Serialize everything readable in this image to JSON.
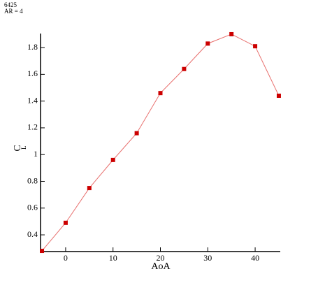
{
  "chart_data": {
    "type": "line",
    "title_lines": [
      "6425",
      "AR = 4"
    ],
    "x_label": "AoA",
    "y_label": "C",
    "y_label_subscript": "L",
    "x": [
      -5,
      0,
      5,
      10,
      15,
      20,
      25,
      30,
      35,
      40,
      45
    ],
    "series": [
      {
        "color": "#cc0000",
        "line_color": "#e8706e",
        "values": [
          0.28,
          0.49,
          0.75,
          0.96,
          1.16,
          1.46,
          1.64,
          1.83,
          1.9,
          1.81,
          1.44
        ]
      }
    ],
    "xlim": [
      -5.3,
      45.3
    ],
    "xticks": [
      0,
      10,
      20,
      30,
      40
    ],
    "ylim": [
      0.275,
      1.905
    ],
    "yticks": [
      0.4,
      0.6,
      0.8,
      1,
      1.2,
      1.4,
      1.6,
      1.8
    ],
    "grid": false
  }
}
